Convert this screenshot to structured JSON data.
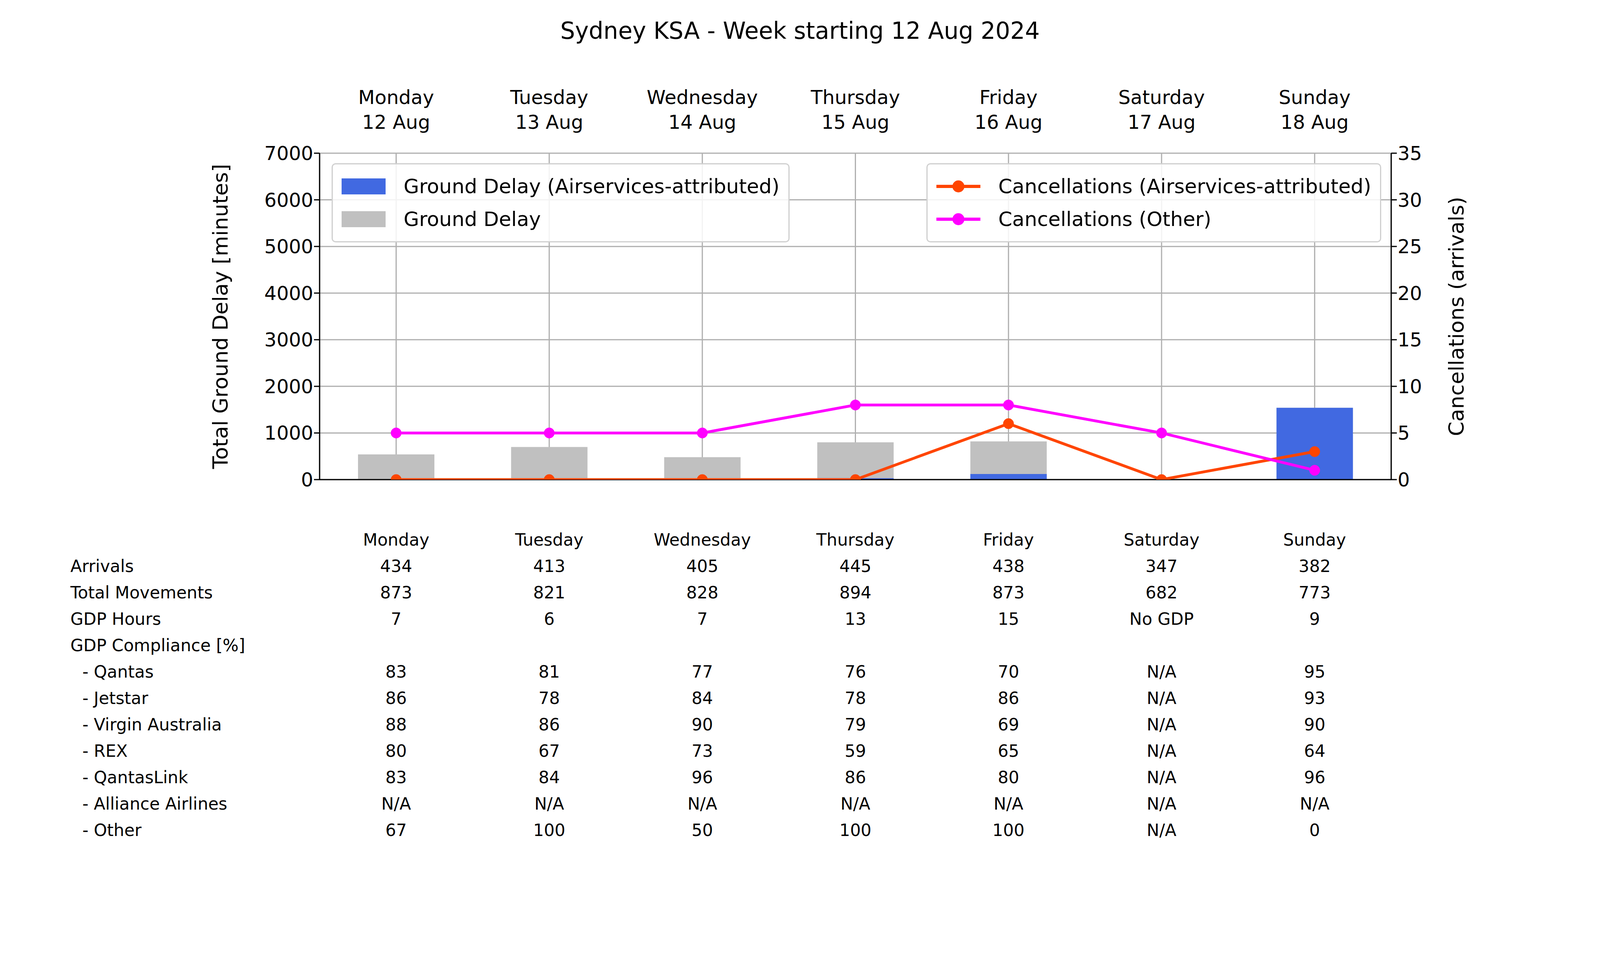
{
  "chart_data": {
    "type": "bar",
    "title": "Sydney KSA - Week starting 12 Aug 2024",
    "categories": [
      "Monday 12 Aug",
      "Tuesday 13 Aug",
      "Wednesday 14 Aug",
      "Thursday 15 Aug",
      "Friday 16 Aug",
      "Saturday 17 Aug",
      "Sunday 18 Aug"
    ],
    "series": [
      {
        "name": "Ground Delay (Airservices-attributed)",
        "type": "bar",
        "color": "#4169e1",
        "values": [
          0,
          0,
          0,
          30,
          120,
          0,
          1540
        ]
      },
      {
        "name": "Ground Delay",
        "type": "bar",
        "color": "#c0c0c0",
        "values": [
          540,
          700,
          480,
          800,
          820,
          0,
          1540
        ]
      },
      {
        "name": "Cancellations (Airservices-attributed)",
        "type": "line",
        "axis": "y2",
        "color": "#ff4500",
        "marker": "o",
        "values": [
          0,
          0,
          0,
          0,
          6,
          0,
          3
        ]
      },
      {
        "name": "Cancellations (Other)",
        "type": "line",
        "axis": "y2",
        "color": "#ff00ff",
        "marker": "o",
        "values": [
          5,
          5,
          5,
          8,
          8,
          5,
          1
        ]
      }
    ],
    "y_label": "Total Ground Delay [minutes]",
    "y2_label": "Cancellations (arrivals)",
    "ylim": [
      0,
      7000
    ],
    "yticks": [
      0,
      1000,
      2000,
      3000,
      4000,
      5000,
      6000,
      7000
    ],
    "y2lim": [
      0,
      35
    ],
    "y2ticks": [
      0,
      5,
      10,
      15,
      20,
      25,
      30,
      35
    ],
    "grid": true,
    "legend": "upper left"
  },
  "table": {
    "columns": [
      "Monday",
      "Tuesday",
      "Wednesday",
      "Thursday",
      "Friday",
      "Saturday",
      "Sunday"
    ],
    "rows": [
      {
        "label": "Arrivals",
        "values": [
          434,
          413,
          405,
          445,
          438,
          347,
          382
        ]
      },
      {
        "label": "Total Movements",
        "values": [
          873,
          821,
          828,
          894,
          873,
          682,
          773
        ]
      },
      {
        "label": "GDP Hours",
        "values": [
          7,
          6,
          7,
          13,
          15,
          "No GDP",
          9
        ]
      },
      {
        "label": "GDP Compliance [%]",
        "rows": [
          {
            "label": "- Qantas",
            "values": [
              83,
              81,
              77,
              76,
              70,
              "N/A",
              95
            ]
          },
          {
            "label": "- Jetstar",
            "values": [
              86,
              78,
              84,
              78,
              86,
              "N/A",
              93
            ]
          },
          {
            "label": "- Virgin Australia",
            "values": [
              88,
              86,
              90,
              79,
              69,
              "N/A",
              90
            ]
          },
          {
            "label": "- REX",
            "values": [
              80,
              67,
              73,
              59,
              65,
              "N/A",
              64
            ]
          },
          {
            "label": "- QantasLink",
            "values": [
              83,
              84,
              96,
              86,
              80,
              "N/A",
              96
            ]
          },
          {
            "label": "- Alliance Airlines",
            "values": [
              "N/A",
              "N/A",
              "N/A",
              "N/A",
              "N/A",
              "N/A",
              "N/A"
            ]
          },
          {
            "label": "- Other",
            "values": [
              67,
              100,
              50,
              100,
              100,
              "N/A",
              0
            ]
          }
        ]
      }
    ]
  }
}
